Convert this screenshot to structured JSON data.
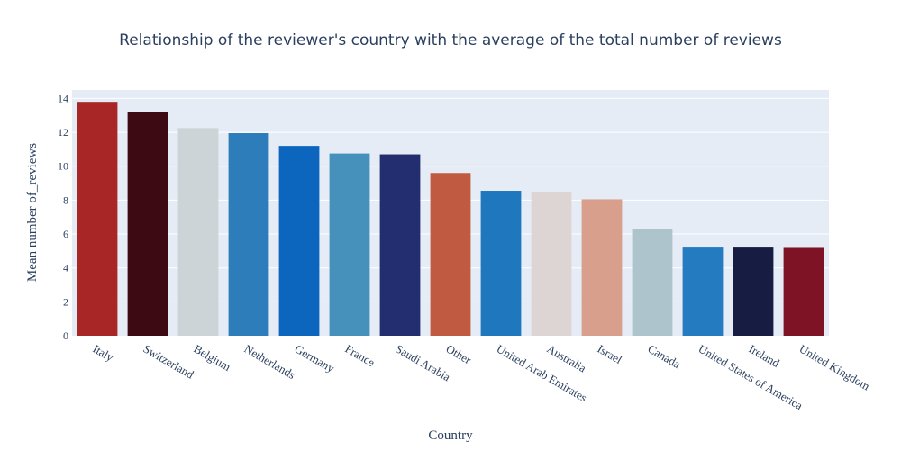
{
  "chart_data": {
    "type": "bar",
    "title": "Relationship of the reviewer's country with the average of the total number of reviews",
    "xlabel": "Country",
    "ylabel": "Mean number of_reviews",
    "ylim": [
      0,
      14.5
    ],
    "yticks": [
      0,
      2,
      4,
      6,
      8,
      10,
      12,
      14
    ],
    "grid": true,
    "categories": [
      "Italy",
      "Switzerland",
      "Belgium",
      "Netherlands",
      "Germany",
      "France",
      "Saudi Arabia",
      "Other",
      "United Arab Emirates",
      "Australia",
      "Israel",
      "Canada",
      "United States of America",
      "Ireland",
      "United Kingdom"
    ],
    "values": [
      13.8,
      13.2,
      12.25,
      11.95,
      11.2,
      10.75,
      10.7,
      9.6,
      8.55,
      8.5,
      8.05,
      6.3,
      5.2,
      5.2,
      5.18
    ],
    "colors": [
      "#a82626",
      "#3d0a14",
      "#cdd4d8",
      "#2d7dbb",
      "#0d66be",
      "#4690bc",
      "#222e70",
      "#c05a40",
      "#1f77be",
      "#dcd5d3",
      "#d8a08c",
      "#adc4cd",
      "#247bbf",
      "#161c42",
      "#7f1326"
    ]
  }
}
